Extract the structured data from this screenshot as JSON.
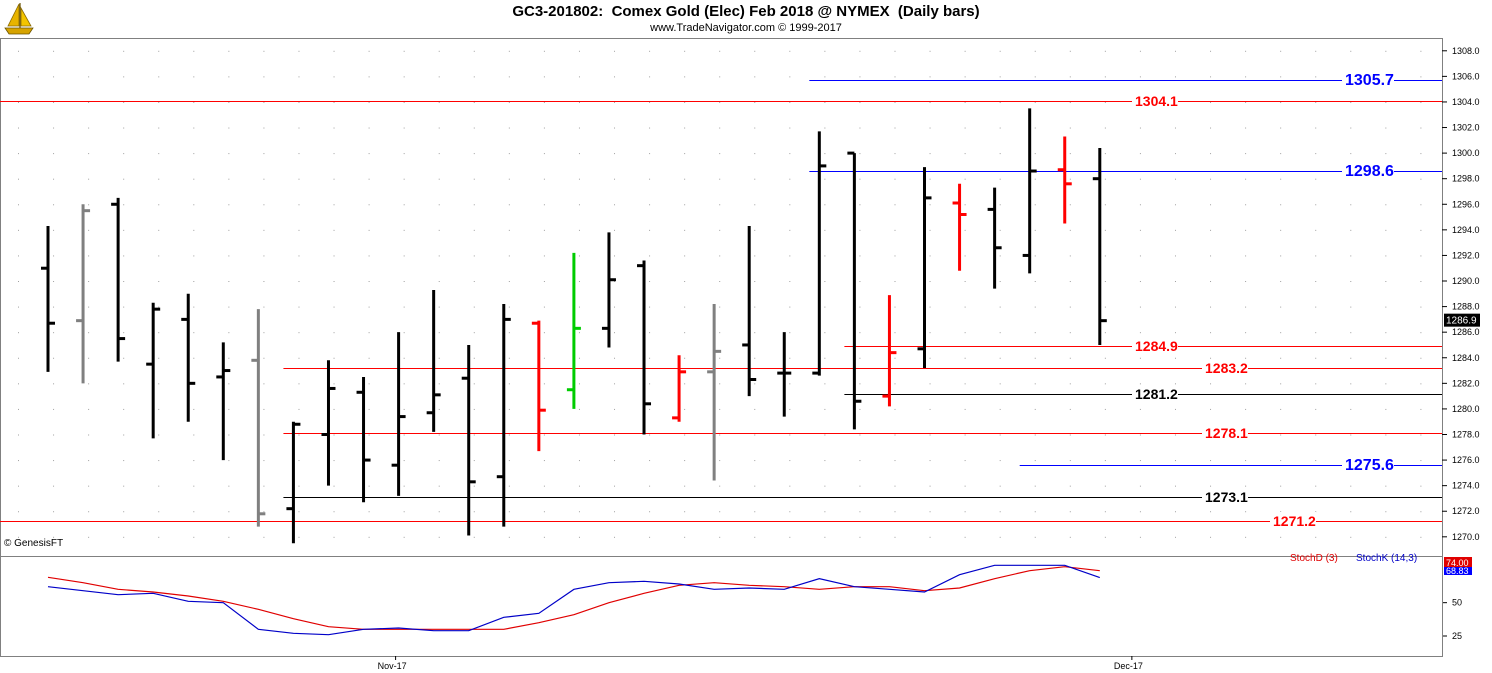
{
  "header": {
    "title": "GC3-201802:  Comex Gold (Elec) Feb 2018 @ NYMEX  (Daily bars)",
    "subtitle": "www.TradeNavigator.com © 1999-2017"
  },
  "watermark": "© GenesisFT",
  "colors": {
    "up_bar": "#000000",
    "down_bar": "#ff0000",
    "inside_bar": "#808080",
    "signal_bar": "#00cc00",
    "red_level": "#e00000",
    "blue_level": "#0000ff",
    "black_level": "#000000",
    "stoch_d": "#e00000",
    "stoch_k": "#0000c8"
  },
  "chart_data": [
    {
      "type": "ohlc",
      "title": "GC3-201802:  Comex Gold (Elec) Feb 2018 @ NYMEX  (Daily bars)",
      "ylim": [
        1268.5,
        1309
      ],
      "yticks": [
        1308.0,
        1306.0,
        1304.0,
        1302.0,
        1300.0,
        1298.0,
        1296.0,
        1294.0,
        1292.0,
        1290.0,
        1288.0,
        1286.0,
        1284.0,
        1282.0,
        1280.0,
        1278.0,
        1276.0,
        1274.0,
        1272.0,
        1270.0
      ],
      "ytick_labels": [
        "1308.0",
        "1306.0",
        "1304.0",
        "1302.0",
        "1300.0",
        "1298.0",
        "1296.0",
        "1294.0",
        "1292.0",
        "1290.0",
        "1288.0",
        "1286.0",
        "1284.0",
        "1282.0",
        "1280.0",
        "1278.0",
        "1276.0",
        "1274.0",
        "1272.0",
        "1270.0"
      ],
      "xtick_labels": [
        {
          "label": "Nov-17",
          "bar": 10
        },
        {
          "label": "Dec-17",
          "bar": 31
        }
      ],
      "last_price": "1286.9",
      "bars": [
        {
          "o": 1291.0,
          "h": 1294.3,
          "l": 1282.9,
          "c": 1286.7,
          "color": "black"
        },
        {
          "o": 1286.9,
          "h": 1296.0,
          "l": 1282.0,
          "c": 1295.5,
          "color": "gray"
        },
        {
          "o": 1296.0,
          "h": 1296.5,
          "l": 1283.7,
          "c": 1285.5,
          "color": "black"
        },
        {
          "o": 1283.5,
          "h": 1288.3,
          "l": 1277.7,
          "c": 1287.8,
          "color": "black"
        },
        {
          "o": 1287.0,
          "h": 1289.0,
          "l": 1279.0,
          "c": 1282.0,
          "color": "black"
        },
        {
          "o": 1282.5,
          "h": 1285.2,
          "l": 1276.0,
          "c": 1283.0,
          "color": "black"
        },
        {
          "o": 1283.8,
          "h": 1287.8,
          "l": 1270.8,
          "c": 1271.8,
          "color": "gray"
        },
        {
          "o": 1272.2,
          "h": 1279.0,
          "l": 1269.5,
          "c": 1278.8,
          "color": "black"
        },
        {
          "o": 1278.0,
          "h": 1283.8,
          "l": 1274.0,
          "c": 1281.6,
          "color": "black"
        },
        {
          "o": 1281.3,
          "h": 1282.5,
          "l": 1272.7,
          "c": 1276.0,
          "color": "black"
        },
        {
          "o": 1275.6,
          "h": 1286.0,
          "l": 1273.2,
          "c": 1279.4,
          "color": "black"
        },
        {
          "o": 1279.7,
          "h": 1289.3,
          "l": 1278.2,
          "c": 1281.1,
          "color": "black"
        },
        {
          "o": 1282.4,
          "h": 1285.0,
          "l": 1270.1,
          "c": 1274.3,
          "color": "black"
        },
        {
          "o": 1274.7,
          "h": 1288.2,
          "l": 1270.8,
          "c": 1287.0,
          "color": "black"
        },
        {
          "o": 1286.7,
          "h": 1286.9,
          "l": 1276.7,
          "c": 1279.9,
          "color": "red"
        },
        {
          "o": 1281.5,
          "h": 1292.2,
          "l": 1280.0,
          "c": 1286.3,
          "color": "green"
        },
        {
          "o": 1286.3,
          "h": 1293.8,
          "l": 1284.8,
          "c": 1290.1,
          "color": "black"
        },
        {
          "o": 1291.2,
          "h": 1291.6,
          "l": 1278.0,
          "c": 1280.4,
          "color": "black"
        },
        {
          "o": 1279.3,
          "h": 1284.2,
          "l": 1279.0,
          "c": 1282.9,
          "color": "red"
        },
        {
          "o": 1282.9,
          "h": 1288.2,
          "l": 1274.4,
          "c": 1284.5,
          "color": "gray"
        },
        {
          "o": 1285.0,
          "h": 1294.3,
          "l": 1281.0,
          "c": 1282.3,
          "color": "black"
        },
        {
          "o": 1282.8,
          "h": 1286.0,
          "l": 1279.4,
          "c": 1282.8,
          "color": "black"
        },
        {
          "o": 1282.8,
          "h": 1301.7,
          "l": 1282.6,
          "c": 1299.0,
          "color": "black"
        },
        {
          "o": 1300.0,
          "h": 1300.0,
          "l": 1278.4,
          "c": 1280.6,
          "color": "black"
        },
        {
          "o": 1281.0,
          "h": 1288.9,
          "l": 1280.2,
          "c": 1284.4,
          "color": "red"
        },
        {
          "o": 1284.7,
          "h": 1298.9,
          "l": 1283.2,
          "c": 1296.5,
          "color": "black"
        },
        {
          "o": 1296.1,
          "h": 1297.6,
          "l": 1290.8,
          "c": 1295.2,
          "color": "red"
        },
        {
          "o": 1295.6,
          "h": 1297.3,
          "l": 1289.4,
          "c": 1292.6,
          "color": "black"
        },
        {
          "o": 1292.0,
          "h": 1303.5,
          "l": 1290.6,
          "c": 1298.6,
          "color": "black"
        },
        {
          "o": 1298.7,
          "h": 1301.3,
          "l": 1294.5,
          "c": 1297.6,
          "color": "red"
        },
        {
          "o": 1298.0,
          "h": 1300.4,
          "l": 1285.0,
          "c": 1286.9,
          "color": "black"
        }
      ],
      "levels": [
        {
          "value": 1305.7,
          "label": "1305.7",
          "color": "blue",
          "from_bar": 22
        },
        {
          "value": 1304.1,
          "label": "1304.1",
          "color": "red",
          "from_bar": -1
        },
        {
          "value": 1298.6,
          "label": "1298.6",
          "color": "blue",
          "from_bar": 22
        },
        {
          "value": 1284.9,
          "label": "1284.9",
          "color": "red",
          "from_bar": 23
        },
        {
          "value": 1283.2,
          "label": "1283.2",
          "color": "red",
          "from_bar": 7
        },
        {
          "value": 1281.2,
          "label": "1281.2",
          "color": "black",
          "from_bar": 23
        },
        {
          "value": 1278.1,
          "label": "1278.1",
          "color": "red",
          "from_bar": 7
        },
        {
          "value": 1275.6,
          "label": "1275.6",
          "color": "blue",
          "from_bar": 28
        },
        {
          "value": 1273.1,
          "label": "1273.1",
          "color": "black",
          "from_bar": 7
        },
        {
          "value": 1271.2,
          "label": "1271.2",
          "color": "red",
          "from_bar": -1
        }
      ]
    },
    {
      "type": "line",
      "ylim": [
        10,
        85
      ],
      "yticks": [
        50,
        25
      ],
      "ytick_labels": [
        "50",
        "25"
      ],
      "last_values": {
        "d": "74.00",
        "k": "68.83"
      },
      "series": [
        {
          "name": "StochD (3)",
          "color": "red",
          "values": [
            69,
            65,
            60,
            58,
            55,
            51,
            45,
            38,
            32,
            30,
            30,
            30,
            30,
            30,
            35,
            41,
            50,
            57,
            63,
            65,
            63,
            62,
            60,
            62,
            62,
            59,
            61,
            68,
            74,
            77,
            74
          ]
        },
        {
          "name": "StochK (14,3)",
          "color": "blue",
          "values": [
            62,
            59,
            56,
            57,
            51,
            50,
            30,
            27,
            26,
            30,
            31,
            29,
            29,
            39,
            42,
            60,
            65,
            66,
            64,
            60,
            61,
            60,
            68,
            62,
            60,
            58,
            71,
            78,
            78,
            78,
            68.83
          ]
        }
      ]
    }
  ]
}
